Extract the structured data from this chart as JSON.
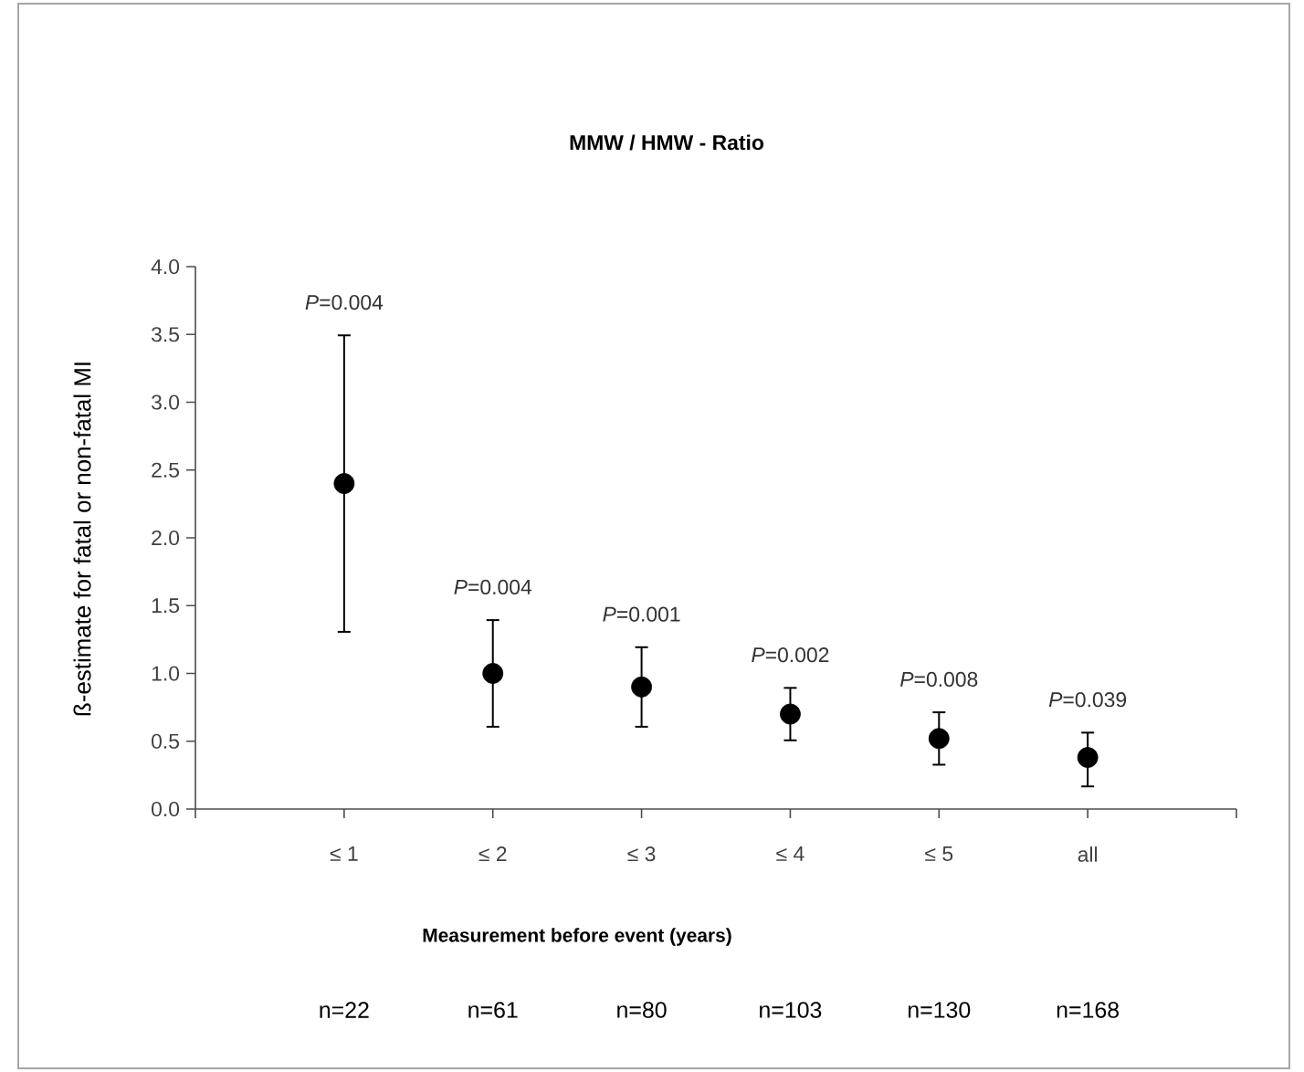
{
  "chart_data": {
    "type": "scatter",
    "title": "MMW / HMW - Ratio",
    "xlabel": "Measurement before event (years)",
    "ylabel": "ß-estimate for fatal or non-fatal MI",
    "categories": [
      "≤ 1",
      "≤ 2",
      "≤ 3",
      "≤ 4",
      "≤ 5",
      "all"
    ],
    "series": [
      {
        "color": "#000000",
        "values": [
          2.4,
          1.0,
          0.9,
          0.7,
          0.52,
          0.38
        ],
        "errors": [
          [
            1.3,
            3.5
          ],
          [
            0.6,
            1.4
          ],
          [
            0.6,
            1.2
          ],
          [
            0.5,
            0.9
          ],
          [
            0.32,
            0.72
          ],
          [
            0.16,
            0.57
          ]
        ]
      }
    ],
    "ylim": [
      0,
      4
    ],
    "yticks": [
      {
        "value": 0,
        "label": "0.0"
      },
      {
        "value": 0.5,
        "label": "0.5"
      },
      {
        "value": 1,
        "label": "1.0"
      },
      {
        "value": 1.5,
        "label": "1.5"
      },
      {
        "value": 2,
        "label": "2.0"
      },
      {
        "value": 2.5,
        "label": "2.5"
      },
      {
        "value": 3,
        "label": "3.0"
      },
      {
        "value": 3.5,
        "label": "3.5"
      },
      {
        "value": 4,
        "label": "4.0"
      }
    ],
    "marker": "circle",
    "grid": false,
    "annotations": [
      "*P*=0.004",
      "*P*=0.004",
      "*P*=0.001",
      "*P*=0.002",
      "*P*=0.008",
      "*P*=0.039",
      "n=22",
      "n=61",
      "n=80",
      "n=103",
      "n=130",
      "n=168"
    ]
  }
}
